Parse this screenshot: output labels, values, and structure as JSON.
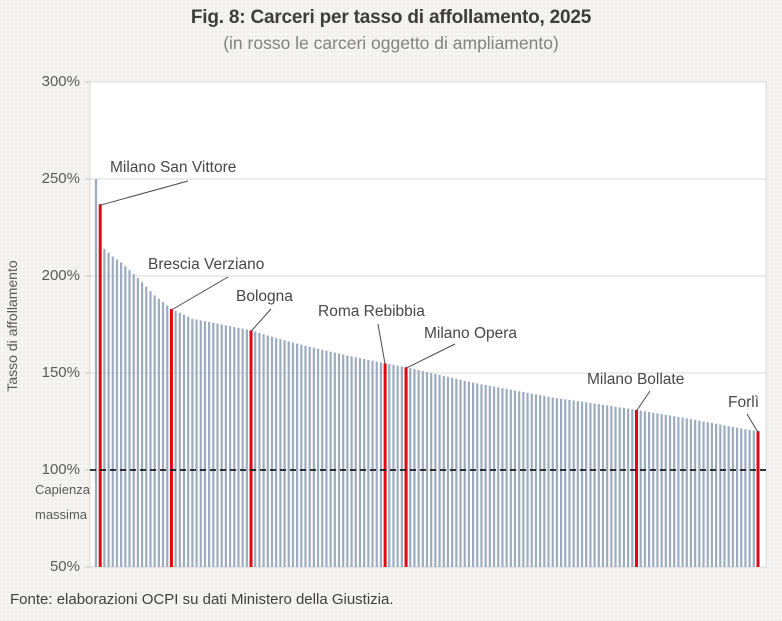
{
  "figure": {
    "source": "Fonte: elaborazioni OCPI su dati Ministero della Giustizia."
  },
  "chart_data": {
    "type": "bar",
    "title": "Fig. 8: Carceri per tasso di affollamento, 2025",
    "subtitle": "(in rosso le carceri oggetto di ampliamento)",
    "ylabel": "Tasso di affollamento",
    "unit": "percent",
    "ylim": [
      50,
      300
    ],
    "grid": "horizontal",
    "y_ticks": [
      {
        "label": "300%",
        "value": 300
      },
      {
        "label": "250%",
        "value": 250
      },
      {
        "label": "200%",
        "value": 200
      },
      {
        "label": "150%",
        "value": 150
      },
      {
        "label": "100%",
        "value": 100
      },
      {
        "label": "50%",
        "value": 50
      }
    ],
    "reference_line": {
      "value": 100,
      "label": "Capienza massima",
      "style": "dashed"
    },
    "n_bars": 159,
    "sort": "descending",
    "highlight_meaning": "in rosso le carceri oggetto di ampliamento",
    "labeled_bars": [
      {
        "name": "Milano San Vittore",
        "index": 1,
        "value": 237
      },
      {
        "name": "Brescia Verziano",
        "index": 18,
        "value": 183
      },
      {
        "name": "Bologna",
        "index": 37,
        "value": 172
      },
      {
        "name": "Roma Rebibbia",
        "index": 69,
        "value": 155
      },
      {
        "name": "Milano Opera",
        "index": 74,
        "value": 153
      },
      {
        "name": "Milano Bollate",
        "index": 129,
        "value": 131
      },
      {
        "name": "Forlì",
        "index": 158,
        "value": 120
      }
    ],
    "bar_value_profile": [
      [
        0,
        250
      ],
      [
        1,
        237
      ],
      [
        2,
        214
      ],
      [
        4,
        210
      ],
      [
        6,
        207
      ],
      [
        10,
        199
      ],
      [
        14,
        190
      ],
      [
        18,
        183
      ],
      [
        23,
        178
      ],
      [
        30,
        175
      ],
      [
        37,
        172
      ],
      [
        43,
        168
      ],
      [
        50,
        164
      ],
      [
        60,
        159
      ],
      [
        69,
        155
      ],
      [
        74,
        153
      ],
      [
        82,
        149
      ],
      [
        90,
        145
      ],
      [
        100,
        141
      ],
      [
        110,
        137
      ],
      [
        120,
        134
      ],
      [
        129,
        131
      ],
      [
        140,
        127
      ],
      [
        150,
        123
      ],
      [
        155,
        121
      ],
      [
        158,
        120
      ]
    ],
    "colors": {
      "bar": "#9dabbe",
      "highlight": "#e30613",
      "grid": "#d9d9d9",
      "reference": "#1a1a1a",
      "plot_background": "#ffffff"
    }
  }
}
